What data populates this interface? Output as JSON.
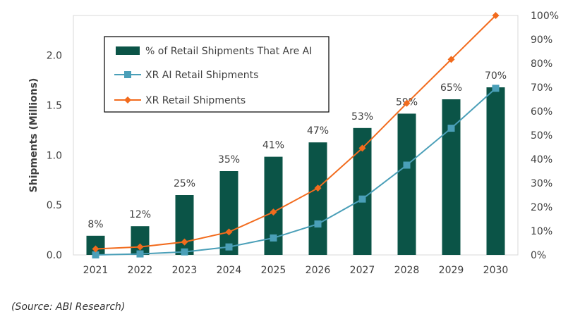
{
  "chart_data": {
    "type": "bar",
    "categories": [
      "2021",
      "2022",
      "2023",
      "2024",
      "2025",
      "2026",
      "2027",
      "2028",
      "2029",
      "2030"
    ],
    "series": [
      {
        "name": "% of Retail Shipments That Are AI",
        "type": "bar",
        "axis": "right",
        "values": [
          8,
          12,
          25,
          35,
          41,
          47,
          53,
          59,
          65,
          70
        ],
        "labels": [
          "8%",
          "12%",
          "25%",
          "35%",
          "41%",
          "47%",
          "53%",
          "59%",
          "65%",
          "70%"
        ],
        "color": "#0b5447"
      },
      {
        "name": "XR AI Retail Shipments",
        "type": "line",
        "axis": "left",
        "values": [
          0.0,
          0.01,
          0.03,
          0.08,
          0.17,
          0.31,
          0.56,
          0.9,
          1.27,
          1.67
        ],
        "marker": "square",
        "color": "#4a9fb8"
      },
      {
        "name": "XR Retail Shipments",
        "type": "line",
        "axis": "left",
        "values": [
          0.06,
          0.08,
          0.13,
          0.23,
          0.43,
          0.67,
          1.07,
          1.52,
          1.96,
          2.4
        ],
        "marker": "diamond",
        "color": "#f26b1d"
      }
    ],
    "ylabel": "Shipments (Millions)",
    "ylim": [
      0,
      2.4
    ],
    "yticks": [
      "0.0",
      "0.5",
      "1.0",
      "1.5",
      "2.0"
    ],
    "y2lim": [
      0,
      100
    ],
    "y2ticks": [
      "0%",
      "10%",
      "20%",
      "30%",
      "40%",
      "50%",
      "60%",
      "70%",
      "80%",
      "90%",
      "100%"
    ],
    "legend_position": "top-left",
    "grid": false
  },
  "footer": {
    "source": "(Source: ABI Research)"
  }
}
